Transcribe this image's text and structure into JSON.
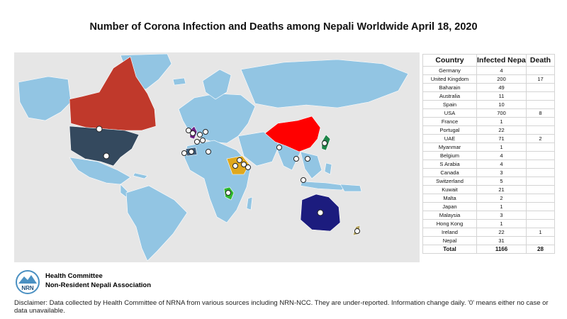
{
  "title": "Number of Corona Infection and Deaths among Nepali Worldwide April 18, 2020",
  "table": {
    "headers": [
      "Country",
      "Infected Nepali",
      "Death"
    ],
    "rows": [
      {
        "country": "Germany",
        "infected": "4",
        "death": ""
      },
      {
        "country": "United Kingdom",
        "infected": "200",
        "death": "17"
      },
      {
        "country": "Baharain",
        "infected": "49",
        "death": ""
      },
      {
        "country": "Australia",
        "infected": "11",
        "death": ""
      },
      {
        "country": "Spain",
        "infected": "10",
        "death": ""
      },
      {
        "country": "USA",
        "infected": "700",
        "death": "8"
      },
      {
        "country": "France",
        "infected": "1",
        "death": ""
      },
      {
        "country": "Portugal",
        "infected": "22",
        "death": ""
      },
      {
        "country": "UAE",
        "infected": "71",
        "death": "2"
      },
      {
        "country": "Myanmar",
        "infected": "1",
        "death": ""
      },
      {
        "country": "Belgium",
        "infected": "4",
        "death": ""
      },
      {
        "country": "S Arabia",
        "infected": "4",
        "death": ""
      },
      {
        "country": "Canada",
        "infected": "3",
        "death": ""
      },
      {
        "country": "Switzerland",
        "infected": "5",
        "death": ""
      },
      {
        "country": "Kuwait",
        "infected": "21",
        "death": ""
      },
      {
        "country": "Malta",
        "infected": "2",
        "death": ""
      },
      {
        "country": "Japan",
        "infected": "1",
        "death": ""
      },
      {
        "country": "Malaysia",
        "infected": "3",
        "death": ""
      },
      {
        "country": "Hong Kong",
        "infected": "1",
        "death": ""
      },
      {
        "country": "Ireland",
        "infected": "22",
        "death": "1"
      },
      {
        "country": "Nepal",
        "infected": "31",
        "death": ""
      }
    ],
    "total": {
      "label": "Total",
      "infected": "1166",
      "death": "28"
    }
  },
  "map": {
    "ocean_color": "#e6e6e6",
    "land_color": "#92c5e3",
    "border_color": "#ffffff",
    "highlights": [
      {
        "region": "Canada",
        "color": "#c0392b"
      },
      {
        "region": "USA",
        "color": "#34495e"
      },
      {
        "region": "China",
        "color": "#ff0000"
      },
      {
        "region": "Australia",
        "color": "#1c1c7e"
      },
      {
        "region": "Saudi Arabia",
        "color": "#e0a81c"
      },
      {
        "region": "East Africa",
        "color": "#2fb82f"
      },
      {
        "region": "Japan",
        "color": "#1e8449"
      },
      {
        "region": "United Kingdom",
        "color": "#6c1f86"
      },
      {
        "region": "Spain",
        "color": "#3c5a78"
      },
      {
        "region": "New Zealand",
        "color": "#b2a05b"
      }
    ],
    "marker_icon": "location-pin-icon"
  },
  "footer": {
    "logo_text": "NRN",
    "committee": "Health Committee",
    "organization": "Non-Resident Nepali Association",
    "disclaimer": "Disclaimer: Data collected by Health Committee of NRNA from various sources including NRN-NCC. They are under-reported.  Information change daily. '0' means either no case or data unavailable."
  }
}
